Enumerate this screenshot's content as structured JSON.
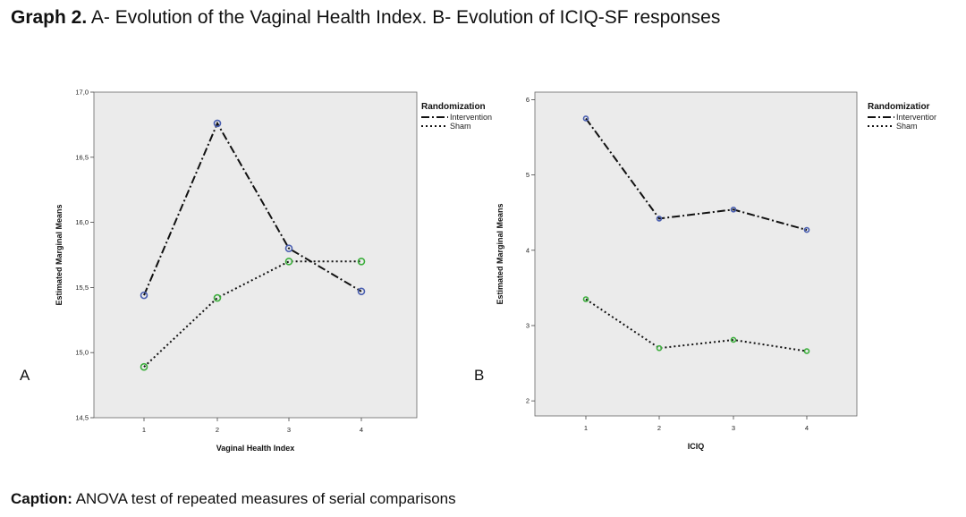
{
  "figure": {
    "title_bold": "Graph 2.",
    "title_rest": " A- Evolution of the Vaginal Health Index. B- Evolution of ICIQ-SF responses",
    "caption_bold": "Caption:",
    "caption_rest": " ANOVA test of repeated measures of serial comparisons"
  },
  "colors": {
    "plot_bg": "#ebebeb",
    "intervention_marker": "#4a5fb0",
    "sham_marker": "#3cae3c",
    "line": "#111111"
  },
  "chart_data": [
    {
      "panel_label": "A",
      "type": "line",
      "title": "",
      "xlabel": "Vaginal Health Index",
      "ylabel": "Estimated Marginal Means",
      "x": [
        1,
        2,
        3,
        4
      ],
      "x_ticks": [
        "1",
        "2",
        "3",
        "4"
      ],
      "y_ticks": [
        "14,5",
        "15,0",
        "15,5",
        "16,0",
        "16,5",
        "17,0"
      ],
      "ylim": [
        14.5,
        17.0
      ],
      "grid": false,
      "legend_title": "Randomization",
      "legend_position": "top-right",
      "series": [
        {
          "name": "Intervention",
          "style": "dash-dot",
          "values": [
            15.44,
            16.76,
            15.8,
            15.47
          ]
        },
        {
          "name": "Sham",
          "style": "dotted",
          "values": [
            14.89,
            15.42,
            15.7,
            15.7
          ]
        }
      ]
    },
    {
      "panel_label": "B",
      "type": "line",
      "title": "",
      "xlabel": "ICIQ",
      "ylabel": "Estimated Marginal Means",
      "x": [
        1,
        2,
        3,
        4
      ],
      "x_ticks": [
        "1",
        "2",
        "3",
        "4"
      ],
      "y_ticks": [
        "2",
        "3",
        "4",
        "5",
        "6"
      ],
      "ylim": [
        1.8,
        6.1
      ],
      "grid": false,
      "legend_title": "Randomizatior",
      "legend_position": "top-right",
      "series": [
        {
          "name": "Interventior",
          "style": "dash-dot",
          "values": [
            5.75,
            4.42,
            4.54,
            4.27
          ]
        },
        {
          "name": "Sham",
          "style": "dotted",
          "values": [
            3.35,
            2.7,
            2.81,
            2.66
          ]
        }
      ]
    }
  ]
}
